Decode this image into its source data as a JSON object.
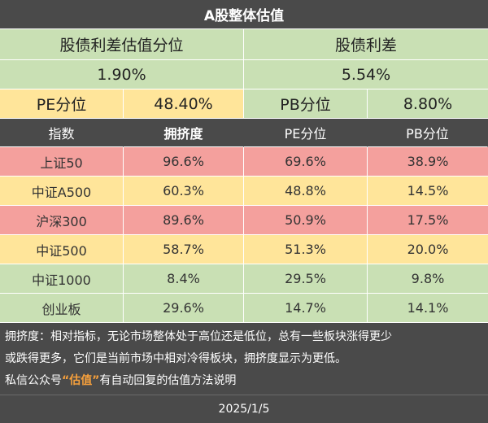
{
  "title": "A股整体估值",
  "spread": {
    "percentile_label": "股债利差估值分位",
    "percentile_value": "1.90%",
    "spread_label": "股债利差",
    "spread_value": "5.54%"
  },
  "overall": {
    "pe_label": "PE分位",
    "pe_value": "48.40%",
    "pb_label": "PB分位",
    "pb_value": "8.80%"
  },
  "table": {
    "headers": [
      "指数",
      "拥挤度",
      "PE分位",
      "PB分位"
    ],
    "rows": [
      {
        "name": "上证50",
        "crowd": "96.6%",
        "pe": "69.6%",
        "pb": "38.9%",
        "color": "#f4a09d"
      },
      {
        "name": "中证A500",
        "crowd": "60.3%",
        "pe": "48.8%",
        "pb": "14.5%",
        "color": "#ffe59a"
      },
      {
        "name": "沪深300",
        "crowd": "89.6%",
        "pe": "50.9%",
        "pb": "17.5%",
        "color": "#f4a09d"
      },
      {
        "name": "中证500",
        "crowd": "58.7%",
        "pe": "51.3%",
        "pb": "20.0%",
        "color": "#ffe59a"
      },
      {
        "name": "中证1000",
        "crowd": "8.4%",
        "pe": "29.5%",
        "pb": "9.8%",
        "color": "#c9e0b4"
      },
      {
        "name": "创业板",
        "crowd": "29.6%",
        "pe": "14.7%",
        "pb": "14.1%",
        "color": "#c9e0b4"
      }
    ]
  },
  "note": {
    "line1": "拥挤度：相对指标，无论市场整体处于高位还是低位，总有一些板块涨得更少",
    "line2": "或跌得更多，它们是当前市场中相对冷得板块，拥挤度显示为更低。",
    "line3_prefix": "私信公众号",
    "line3_highlight": "“估值”",
    "line3_suffix": "有自动回复的估值方法说明"
  },
  "date": "2025/1/5"
}
